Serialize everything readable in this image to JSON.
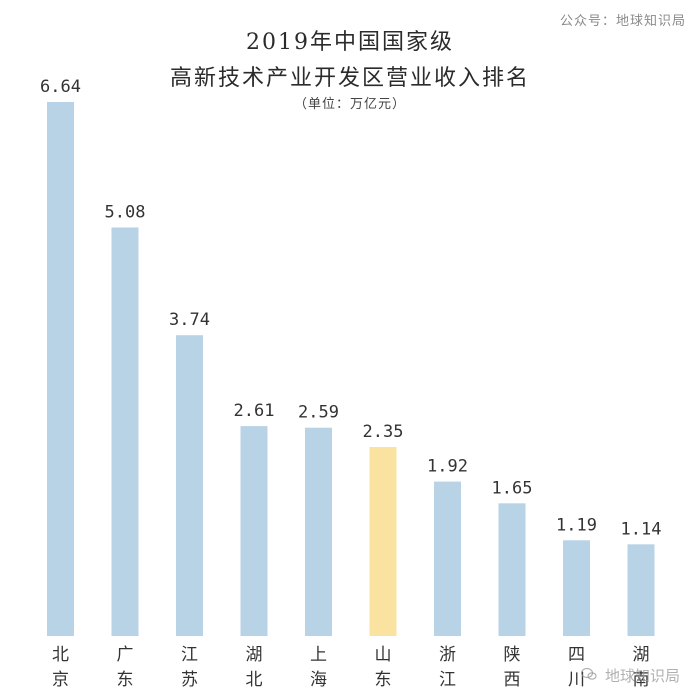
{
  "watermark_top": "公众号：地球知识局",
  "watermark_bottom": "地球知识局",
  "colors": {
    "bar": "#b9d3e6",
    "highlight": "#fae3a0"
  },
  "chart_data": {
    "type": "bar",
    "title": "2019年中国国家级",
    "title_line2": "高新技术产业开发区营业收入排名",
    "subtitle": "（单位：万亿元）",
    "unit": "万亿元",
    "categories": [
      "北京",
      "广东",
      "江苏",
      "湖北",
      "上海",
      "山东",
      "浙江",
      "陕西",
      "四川",
      "湖南"
    ],
    "values": [
      6.64,
      5.08,
      3.74,
      2.61,
      2.59,
      2.35,
      1.92,
      1.65,
      1.19,
      1.14
    ],
    "value_labels": [
      "6.64",
      "5.08",
      "3.74",
      "2.61",
      "2.59",
      "2.35",
      "1.92",
      "1.65",
      "1.19",
      "1.14"
    ],
    "highlight_category": "山东",
    "ylim": [
      0,
      6.64
    ],
    "xlabel": "",
    "ylabel": "",
    "grid": false
  }
}
